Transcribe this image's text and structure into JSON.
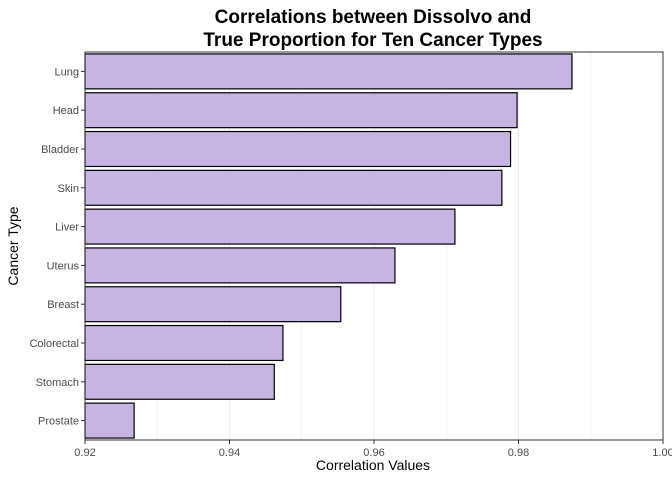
{
  "chart_data": {
    "type": "bar",
    "orientation": "horizontal",
    "title_lines": [
      "Correlations between Dissolvo and",
      "True Proportion for Ten Cancer Types"
    ],
    "xlabel": "Correlation Values",
    "ylabel": "Cancer Type",
    "xlim": [
      0.92,
      1.0
    ],
    "xticks": [
      "0.92",
      "0.94",
      "0.96",
      "0.98",
      "1.00"
    ],
    "categories": [
      "Lung",
      "Head",
      "Bladder",
      "Skin",
      "Liver",
      "Uterus",
      "Breast",
      "Colorectal",
      "Stomach",
      "Prostate"
    ],
    "values": [
      0.9874,
      0.9798,
      0.9789,
      0.9777,
      0.9712,
      0.9629,
      0.9554,
      0.9474,
      0.9462,
      0.9268
    ],
    "bar_color": "#c6b5e3",
    "bar_outline_color": "#000000",
    "grid": true,
    "legend": "none"
  }
}
